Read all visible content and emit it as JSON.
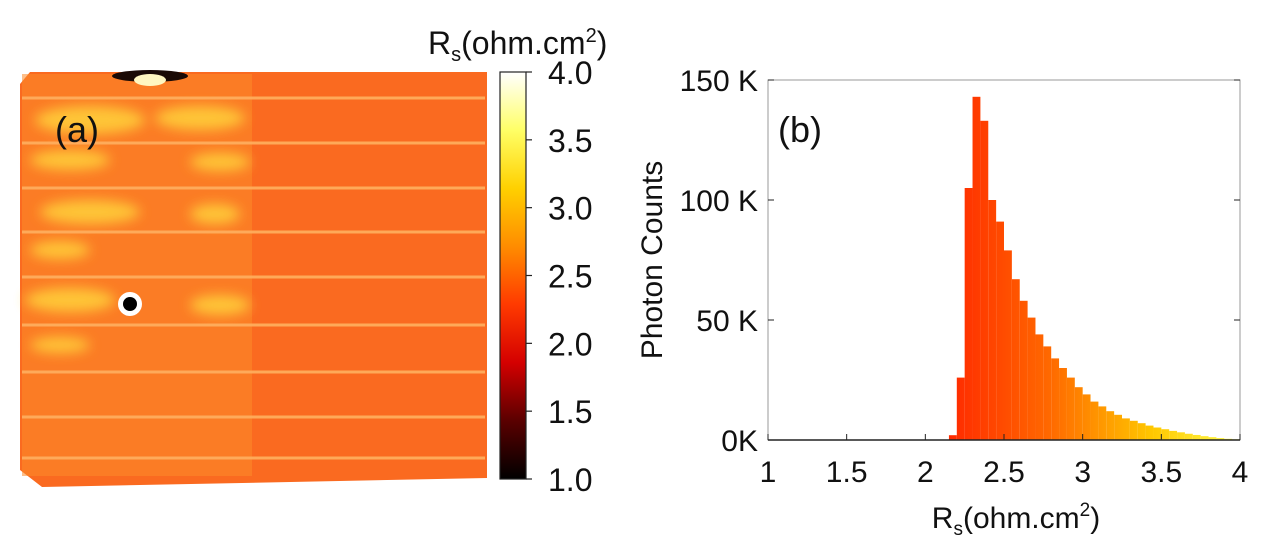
{
  "panel_a": {
    "label": "(a)",
    "colorbar": {
      "title_main": "R",
      "title_sub": "s",
      "title_unit": "(ohm.cm",
      "title_sup": "2",
      "title_close": ")",
      "ticks": [
        "4.0",
        "3.5",
        "3.0",
        "2.5",
        "2.0",
        "1.5",
        "1.0"
      ],
      "range": [
        1.0,
        4.0
      ],
      "colors": [
        "#000000",
        "#5a0000",
        "#d40000",
        "#ff3a00",
        "#ff8c00",
        "#ffd000",
        "#ffff66",
        "#ffffff"
      ]
    },
    "map_base_color": "#fa6a20"
  },
  "chart_data": {
    "type": "bar",
    "panel_label": "(b)",
    "xlabel_main": "R",
    "xlabel_sub": "s",
    "xlabel_unit": "(ohm.cm",
    "xlabel_sup": "2",
    "xlabel_close": ")",
    "ylabel": "Photon Counts",
    "xlim": [
      1,
      4
    ],
    "ylim": [
      0,
      150000
    ],
    "xticks": [
      1,
      1.5,
      2,
      2.5,
      3,
      3.5,
      4
    ],
    "xtick_labels": [
      "1",
      "1.5",
      "2",
      "2.5",
      "3",
      "3.5",
      "4"
    ],
    "yticks": [
      0,
      50000,
      100000,
      150000
    ],
    "ytick_labels": [
      "0K",
      "50 K",
      "100 K",
      "150 K"
    ],
    "bin_width": 0.05,
    "bin_starts": [
      2.15,
      2.2,
      2.25,
      2.3,
      2.35,
      2.4,
      2.45,
      2.5,
      2.55,
      2.6,
      2.65,
      2.7,
      2.75,
      2.8,
      2.85,
      2.9,
      2.95,
      3.0,
      3.05,
      3.1,
      3.15,
      3.2,
      3.25,
      3.3,
      3.35,
      3.4,
      3.45,
      3.5,
      3.55,
      3.6,
      3.65,
      3.7,
      3.75,
      3.8,
      3.85,
      3.9,
      3.95
    ],
    "values": [
      2000,
      26000,
      105000,
      143000,
      133000,
      100000,
      91000,
      79000,
      67000,
      58000,
      51000,
      44000,
      39000,
      34000,
      30000,
      26000,
      22000,
      19000,
      16000,
      14000,
      12000,
      10500,
      9000,
      8000,
      7000,
      6000,
      5200,
      4500,
      3800,
      3200,
      2600,
      2100,
      1600,
      1200,
      800,
      500,
      300
    ]
  }
}
